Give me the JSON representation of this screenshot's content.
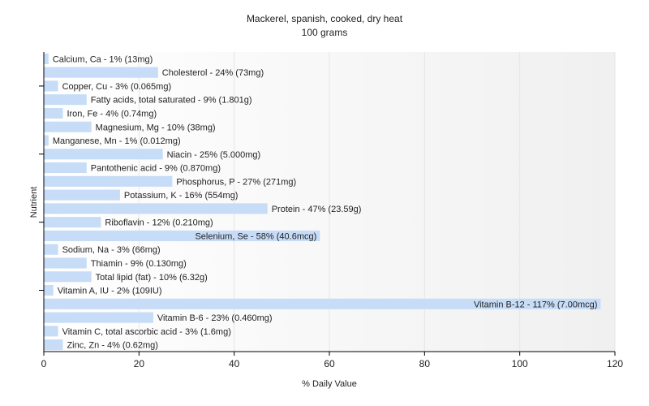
{
  "chart_data": {
    "type": "bar",
    "orientation": "horizontal",
    "title": "Mackerel, spanish, cooked, dry heat",
    "subtitle": "100 grams",
    "xlabel": "% Daily Value",
    "ylabel": "Nutrient",
    "xlim": [
      0,
      120
    ],
    "xticks": [
      0,
      20,
      40,
      60,
      80,
      100,
      120
    ],
    "grid": true,
    "colors": {
      "bar": "#c6dcf7",
      "axis": "#000000",
      "grid": "#e6e6e6",
      "text": "#222222"
    },
    "bars": [
      {
        "category": "Calcium, Ca",
        "value": 1,
        "label": "Calcium, Ca - 1% (13mg)"
      },
      {
        "category": "Cholesterol",
        "value": 24,
        "label": "Cholesterol - 24% (73mg)"
      },
      {
        "category": "Copper, Cu",
        "value": 3,
        "label": "Copper, Cu - 3% (0.065mg)"
      },
      {
        "category": "Fatty acids, total saturated",
        "value": 9,
        "label": "Fatty acids, total saturated - 9% (1.801g)"
      },
      {
        "category": "Iron, Fe",
        "value": 4,
        "label": "Iron, Fe - 4% (0.74mg)"
      },
      {
        "category": "Magnesium, Mg",
        "value": 10,
        "label": "Magnesium, Mg - 10% (38mg)"
      },
      {
        "category": "Manganese, Mn",
        "value": 1,
        "label": "Manganese, Mn - 1% (0.012mg)"
      },
      {
        "category": "Niacin",
        "value": 25,
        "label": "Niacin - 25% (5.000mg)"
      },
      {
        "category": "Pantothenic acid",
        "value": 9,
        "label": "Pantothenic acid - 9% (0.870mg)"
      },
      {
        "category": "Phosphorus, P",
        "value": 27,
        "label": "Phosphorus, P - 27% (271mg)"
      },
      {
        "category": "Potassium, K",
        "value": 16,
        "label": "Potassium, K - 16% (554mg)"
      },
      {
        "category": "Protein",
        "value": 47,
        "label": "Protein - 47% (23.59g)"
      },
      {
        "category": "Riboflavin",
        "value": 12,
        "label": "Riboflavin - 12% (0.210mg)"
      },
      {
        "category": "Selenium, Se",
        "value": 58,
        "label": "Selenium, Se - 58% (40.6mcg)"
      },
      {
        "category": "Sodium, Na",
        "value": 3,
        "label": "Sodium, Na - 3% (66mg)"
      },
      {
        "category": "Thiamin",
        "value": 9,
        "label": "Thiamin - 9% (0.130mg)"
      },
      {
        "category": "Total lipid (fat)",
        "value": 10,
        "label": "Total lipid (fat) - 10% (6.32g)"
      },
      {
        "category": "Vitamin A, IU",
        "value": 2,
        "label": "Vitamin A, IU - 2% (109IU)"
      },
      {
        "category": "Vitamin B-12",
        "value": 117,
        "label": "Vitamin B-12 - 117% (7.00mcg)"
      },
      {
        "category": "Vitamin B-6",
        "value": 23,
        "label": "Vitamin B-6 - 23% (0.460mg)"
      },
      {
        "category": "Vitamin C, total ascorbic acid",
        "value": 3,
        "label": "Vitamin C, total ascorbic acid - 3% (1.6mg)"
      },
      {
        "category": "Zinc, Zn",
        "value": 4,
        "label": "Zinc, Zn - 4% (0.62mg)"
      }
    ]
  }
}
